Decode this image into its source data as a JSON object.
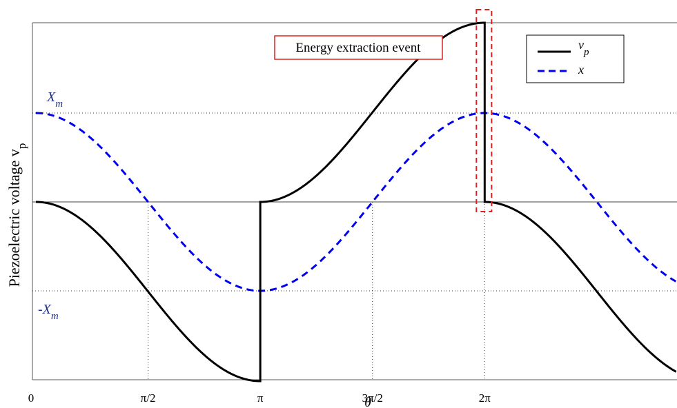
{
  "chart_data": {
    "type": "line",
    "xlabel": "θ",
    "ylabel": "Piezoelectric voltage v",
    "ylabel_sub": "p",
    "x_range_rad": [
      0,
      18.7
    ],
    "x_ticks": [
      {
        "value": 0,
        "label": "0"
      },
      {
        "value": 1.5708,
        "label": "π/2"
      },
      {
        "value": 3.1416,
        "label": "π"
      },
      {
        "value": 4.7124,
        "label": "3π/2"
      },
      {
        "value": 6.2832,
        "label": "2π"
      }
    ],
    "levels": [
      {
        "name": "X",
        "sub": "m",
        "value": 1,
        "label_prefix": ""
      },
      {
        "name": "X",
        "sub": "m",
        "value": -1,
        "label_prefix": "-"
      }
    ],
    "annotation": {
      "text": "Energy extraction event",
      "x": 6.2832
    },
    "legend": {
      "position": "top-right",
      "entries": [
        {
          "name": "v",
          "sub": "p",
          "color": "#000000",
          "style": "solid"
        },
        {
          "name": "x",
          "sub": "",
          "color": "#0000ee",
          "style": "dashed"
        }
      ]
    },
    "series": [
      {
        "key": "vp",
        "color": "#000000",
        "description": "v_p = ±(1 - cos) between extraction events, reset to 0 at each multiple of π"
      },
      {
        "key": "x",
        "color": "#0000ee",
        "description": "x = X_m cos(θ)"
      }
    ],
    "vp_peak": 2,
    "x_amplitude": 1,
    "grid": "dotted reference lines"
  }
}
